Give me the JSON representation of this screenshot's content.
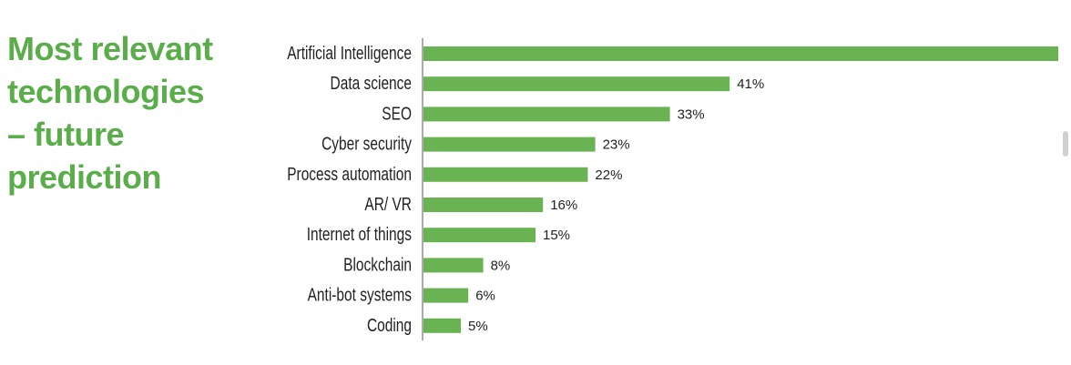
{
  "chart_data": {
    "type": "bar",
    "orientation": "horizontal",
    "title_lines": [
      "Most relevant",
      "technologies",
      "– future",
      "prediction"
    ],
    "categories": [
      "Artificial Intelligence",
      "Data science",
      "SEO",
      "Cyber security",
      "Process automation",
      "AR/ VR",
      "Internet of things",
      "Blockchain",
      "Anti-bot systems",
      "Coding"
    ],
    "values": [
      85,
      41,
      33,
      23,
      22,
      16,
      15,
      8,
      6,
      5
    ],
    "value_labels": [
      "",
      "41%",
      "33%",
      "23%",
      "22%",
      "16%",
      "15%",
      "8%",
      "6%",
      "5%"
    ],
    "xlim": [
      0,
      85
    ],
    "grid": false,
    "bar_color": "#6ab352"
  }
}
